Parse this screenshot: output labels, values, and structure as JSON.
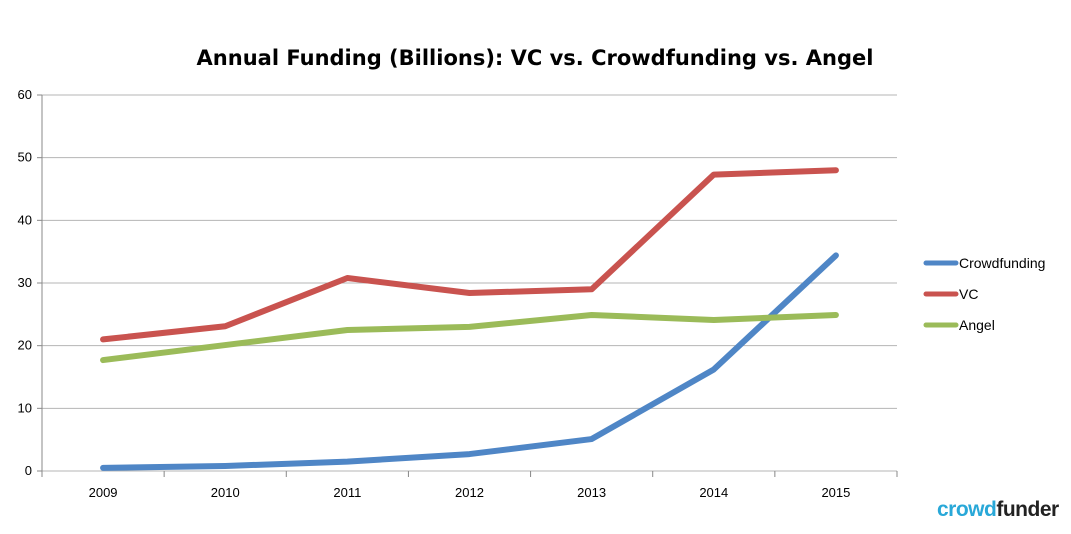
{
  "chart_data": {
    "type": "line",
    "title": "Annual Funding (Billions): VC vs. Crowdfunding vs. Angel",
    "categories": [
      "2009",
      "2010",
      "2011",
      "2012",
      "2013",
      "2014",
      "2015"
    ],
    "ylim": [
      0,
      60
    ],
    "yticks": [
      0,
      10,
      20,
      30,
      40,
      50,
      60
    ],
    "grid": true,
    "legend_position": "right",
    "series": [
      {
        "name": "Crowdfunding",
        "color": "#4f86c6",
        "values": [
          0.5,
          0.8,
          1.5,
          2.7,
          5.1,
          16.2,
          34.4
        ]
      },
      {
        "name": "VC",
        "color": "#c9534f",
        "values": [
          21.0,
          23.1,
          30.8,
          28.4,
          29.0,
          47.3,
          48.0
        ]
      },
      {
        "name": "Angel",
        "color": "#9bbb59",
        "values": [
          17.7,
          20.1,
          22.5,
          23.0,
          24.9,
          24.1,
          24.9
        ]
      }
    ]
  },
  "logo": {
    "part1": "crowd",
    "part2": "funder"
  }
}
